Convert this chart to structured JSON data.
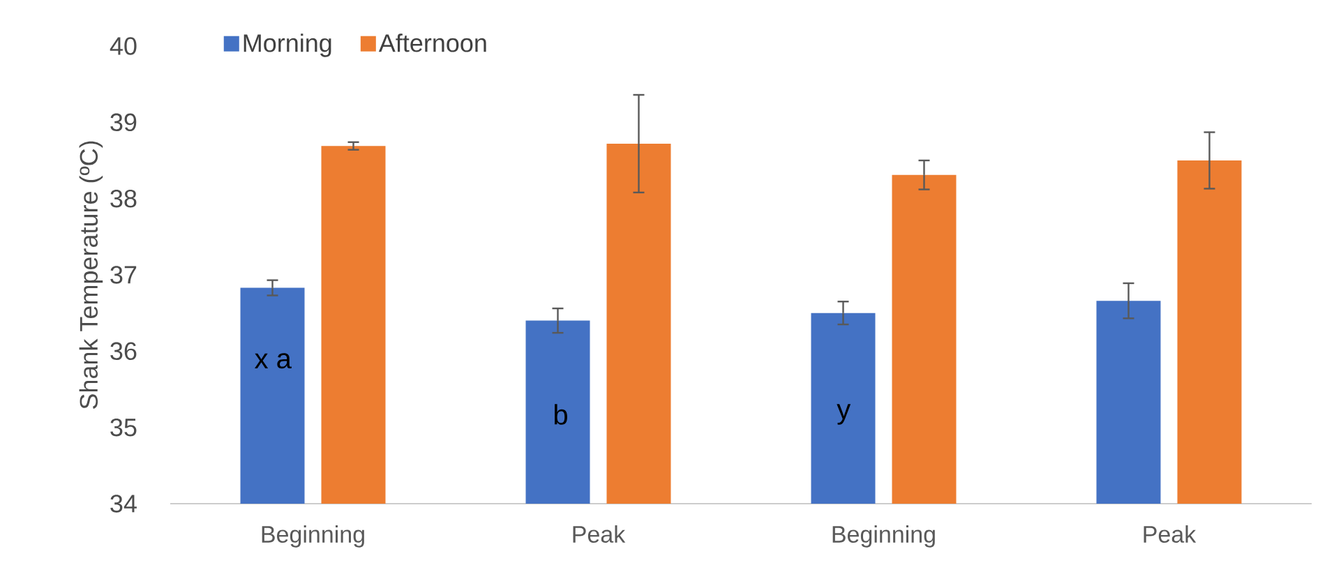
{
  "chart_data": {
    "type": "bar",
    "ylabel": "Shank Temperature (ºC)",
    "categories": [
      "Beginning",
      "Peak",
      "Beginning",
      "Peak"
    ],
    "series": [
      {
        "name": "Morning",
        "color": "#4472c4",
        "values": [
          36.83,
          36.4,
          36.5,
          36.66
        ],
        "errors": [
          0.1,
          0.16,
          0.15,
          0.23
        ]
      },
      {
        "name": "Afternoon",
        "color": "#ed7d31",
        "values": [
          38.69,
          38.72,
          38.31,
          38.5
        ],
        "errors": [
          0.05,
          0.64,
          0.19,
          0.37
        ]
      }
    ],
    "ylim": [
      34,
      40
    ],
    "yticks": [
      34,
      35,
      36,
      37,
      38,
      39,
      40
    ],
    "legend": "top left",
    "annotations": [
      "x a",
      "b",
      "y"
    ]
  }
}
